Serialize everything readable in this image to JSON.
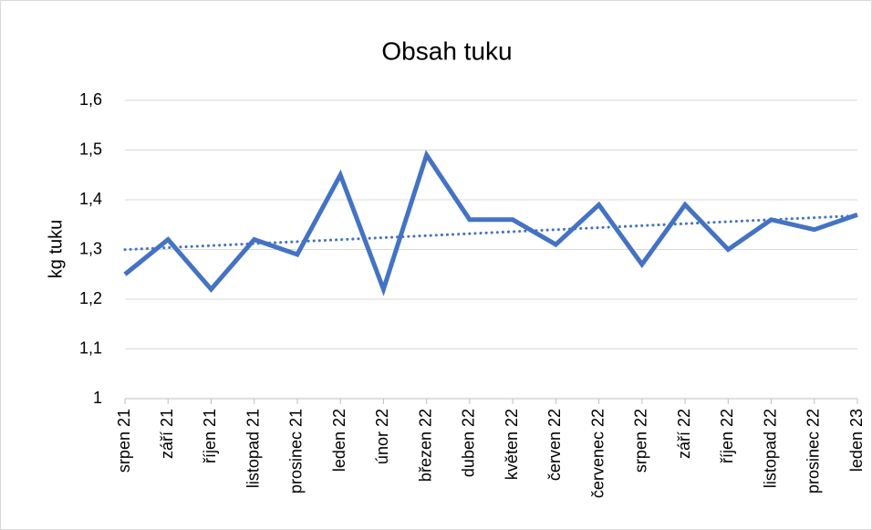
{
  "chart_data": {
    "type": "line",
    "title": "Obsah tuku",
    "y_label": "kg tuku",
    "categories": [
      "srpen 21",
      "září 21",
      "říjen 21",
      "listopad 21",
      "prosinec 21",
      "leden 22",
      "únor 22",
      "březen 22",
      "duben 22",
      "květen 22",
      "červen 22",
      "červenec 22",
      "srpen 22",
      "září 22",
      "říjen 22",
      "listopad 22",
      "prosinec 22",
      "leden 23"
    ],
    "series": [
      {
        "name": "Obsah tuku",
        "color": "#4472c4",
        "values": [
          1.25,
          1.32,
          1.22,
          1.32,
          1.29,
          1.45,
          1.22,
          1.49,
          1.36,
          1.36,
          1.31,
          1.39,
          1.27,
          1.39,
          1.3,
          1.36,
          1.34,
          1.37
        ]
      }
    ],
    "trendline": "linear",
    "ylim": [
      1,
      1.6
    ],
    "yticks": [
      1,
      {
        "value": 1.1,
        "label": "1,1"
      },
      {
        "value": 1.2,
        "label": "1,2"
      },
      {
        "value": 1.3,
        "label": "1,3"
      },
      {
        "value": 1.4,
        "label": "1,4"
      },
      {
        "value": 1.5,
        "label": "1,5"
      },
      {
        "value": 1.6,
        "label": "1,6"
      }
    ],
    "grid": true
  }
}
